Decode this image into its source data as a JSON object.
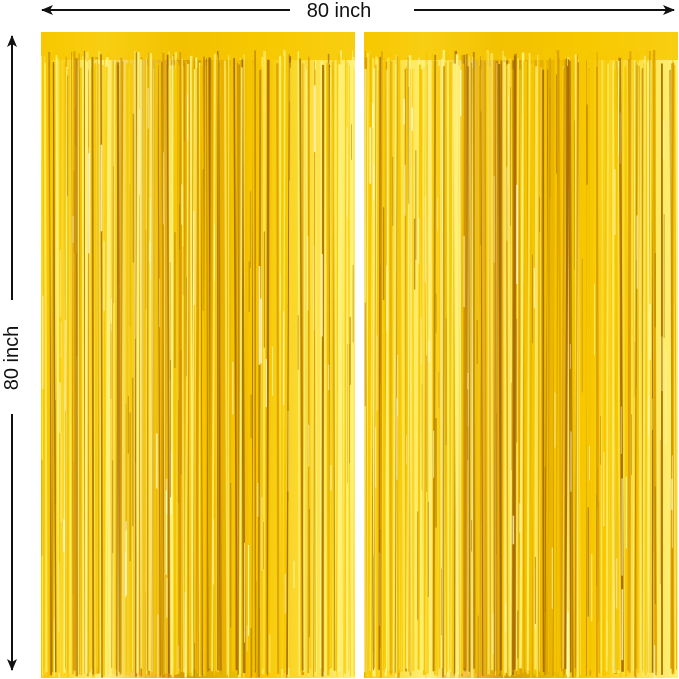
{
  "dimensions": {
    "width_label": "80 inch",
    "height_label": "80 inch"
  },
  "product": {
    "panels": [
      {
        "name": "left-curtain"
      },
      {
        "name": "right-curtain"
      }
    ],
    "colors": {
      "gold_light": "#fff27a",
      "gold_mid": "#f7c800",
      "gold_deep": "#d99a00",
      "gold_dark": "#a86d00",
      "arrow": "#111111"
    }
  }
}
